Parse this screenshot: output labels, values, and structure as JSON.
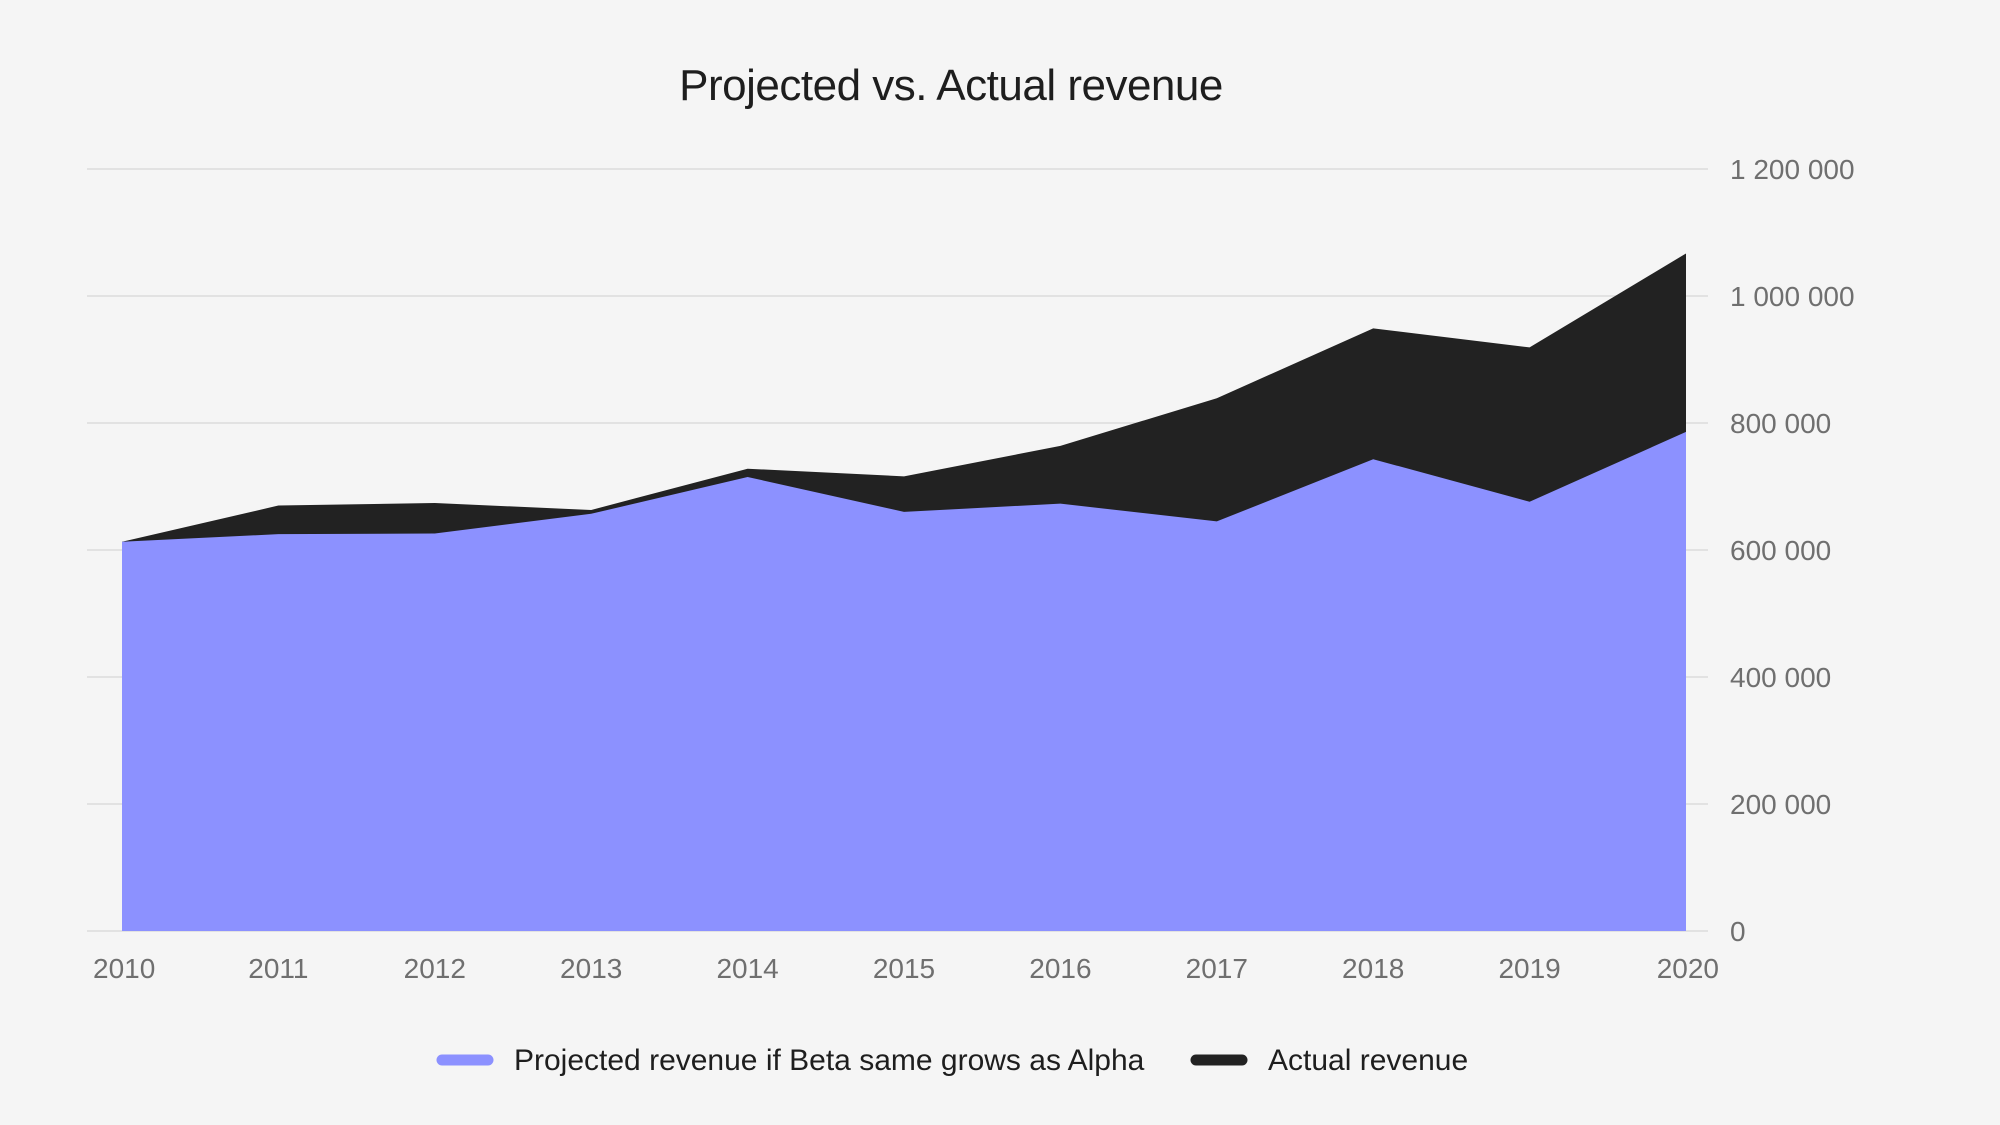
{
  "chart_data": {
    "type": "area",
    "title": "Projected vs. Actual revenue",
    "xlabel": "",
    "ylabel": "",
    "x": [
      2010,
      2011,
      2012,
      2013,
      2014,
      2015,
      2016,
      2017,
      2018,
      2019,
      2020
    ],
    "x_tick_labels": [
      "2010",
      "2011",
      "2012",
      "2013",
      "2014",
      "2015",
      "2016",
      "2017",
      "2018",
      "2019",
      "2020"
    ],
    "y_tick_values": [
      0,
      200000,
      400000,
      600000,
      800000,
      1000000,
      1200000
    ],
    "y_tick_labels": [
      "0",
      "200 000",
      "400 000",
      "600 000",
      "800 000",
      "1 000 000",
      "1 200 000"
    ],
    "ylim": [
      0,
      1200000
    ],
    "y_axis_position": "right",
    "grid": true,
    "legend_position": "bottom-center",
    "series": [
      {
        "name": "Projected revenue if Beta same grows as Alpha",
        "color": "#8c91ff",
        "values": [
          613000,
          625000,
          626000,
          657000,
          715000,
          660000,
          673000,
          645000,
          743000,
          676000,
          786000
        ]
      },
      {
        "name": "Actual revenue",
        "color": "#222222",
        "values": [
          613000,
          670000,
          674000,
          663000,
          728000,
          716000,
          764000,
          839000,
          949000,
          919000,
          1067000
        ]
      }
    ]
  }
}
